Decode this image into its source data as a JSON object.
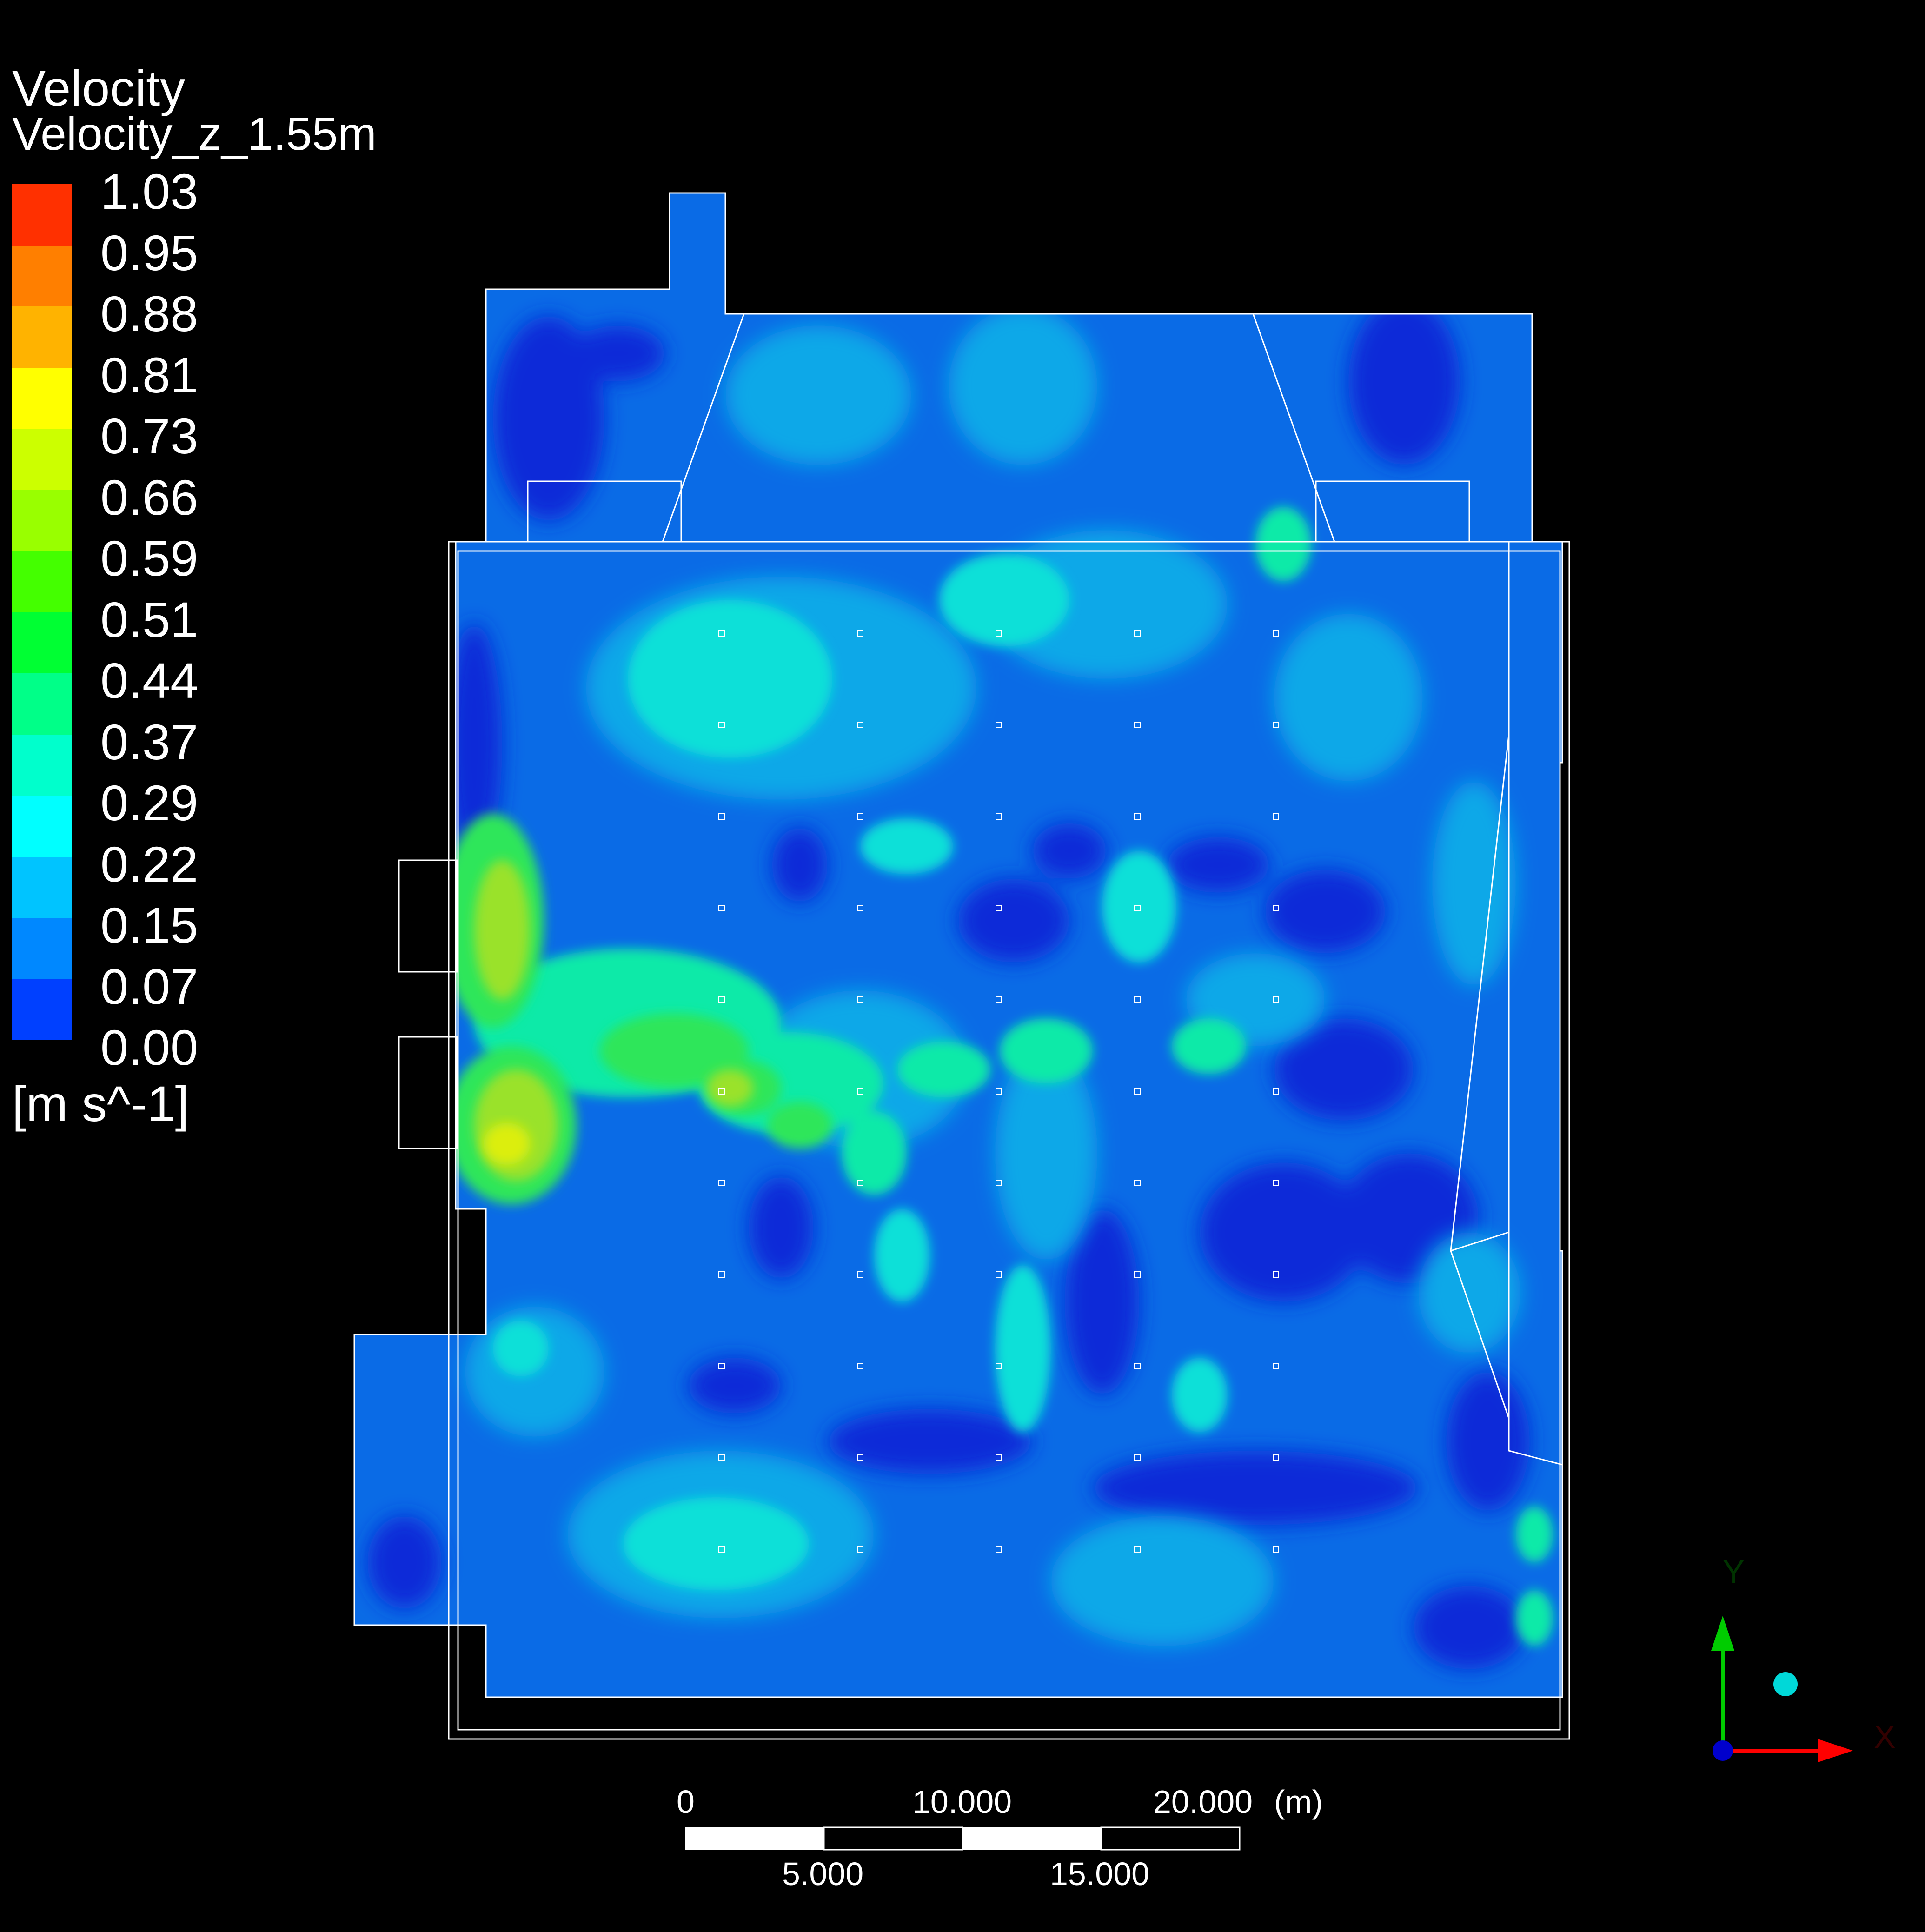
{
  "legend": {
    "title": "Velocity",
    "subtitle": "Velocity_z_1.55m",
    "unit": "[m s^-1]",
    "ticks": [
      "1.03",
      "0.95",
      "0.88",
      "0.81",
      "0.73",
      "0.66",
      "0.59",
      "0.51",
      "0.44",
      "0.37",
      "0.29",
      "0.22",
      "0.15",
      "0.07",
      "0.00"
    ],
    "colors": [
      "#ff3000",
      "#ff7f00",
      "#ffb300",
      "#ffff00",
      "#ccff00",
      "#99ff00",
      "#44ff00",
      "#00ff33",
      "#00ff88",
      "#00ffcc",
      "#00ffff",
      "#00c4ff",
      "#0088ff",
      "#0040ff"
    ]
  },
  "scale_bar": {
    "top_labels": [
      "0",
      "10.000",
      "20.000"
    ],
    "unit": "(m)",
    "bottom_labels": [
      "5.000",
      "15.000"
    ]
  },
  "axes": {
    "y_label": "Y",
    "x_label": "X",
    "colors": {
      "y": "#00cc00",
      "x": "#ff0000",
      "z": "#0000cc",
      "sphere": "#00d8d8"
    }
  },
  "field_colors": {
    "deep": "#0a2ad8",
    "mid": "#0a6be6",
    "light": "#0aa8e8",
    "cyan": "#0ae0d8",
    "aqua": "#10eaa8",
    "green": "#2ee65a",
    "lime": "#9ae22a",
    "yellow": "#dcee10"
  }
}
